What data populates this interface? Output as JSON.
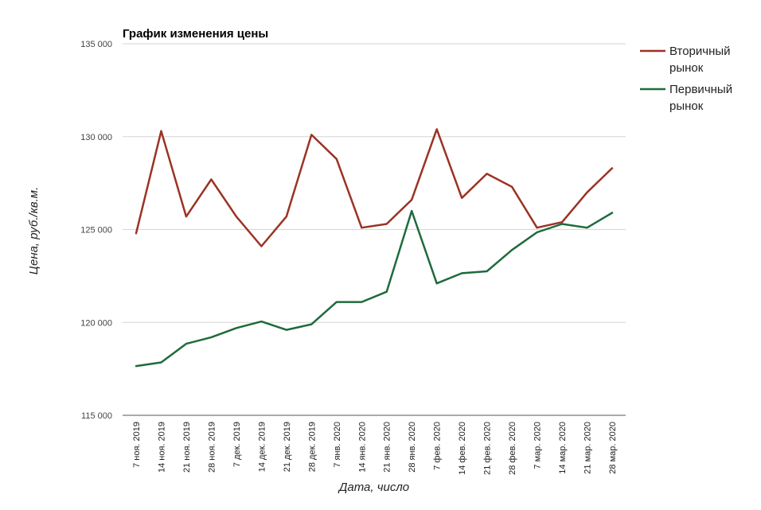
{
  "chart_data": {
    "type": "line",
    "title": "График изменения цены",
    "xlabel": "Дата, число",
    "ylabel": "Цена, руб./кв.м.",
    "ylim": [
      115000,
      135000
    ],
    "yticks": [
      115000,
      120000,
      125000,
      130000,
      135000
    ],
    "ytick_labels": [
      "115 000",
      "120 000",
      "125 000",
      "130 000",
      "135 000"
    ],
    "grid": true,
    "legend_position": "right",
    "categories": [
      "7 ноя. 2019",
      "14 ноя. 2019",
      "21 ноя. 2019",
      "28 ноя. 2019",
      "7 дек. 2019",
      "14 дек. 2019",
      "21 дек. 2019",
      "28 дек. 2019",
      "7 янв. 2020",
      "14 янв. 2020",
      "21 янв. 2020",
      "28 янв. 2020",
      "7 фев. 2020",
      "14 фев. 2020",
      "21 фев. 2020",
      "28 фев. 2020",
      "7 мар. 2020",
      "14 мар. 2020",
      "21 мар. 2020",
      "28 мар. 2020"
    ],
    "series": [
      {
        "name": "Вторичный рынок",
        "color": "#9a3324",
        "values": [
          124800,
          130300,
          125700,
          127700,
          125700,
          124100,
          125700,
          130100,
          128800,
          125100,
          125300,
          126600,
          130400,
          126700,
          128000,
          127300,
          125100,
          125400,
          127000,
          128300
        ]
      },
      {
        "name": "Первичный рынок",
        "color": "#1e6b3c",
        "values": [
          117650,
          117850,
          118850,
          119200,
          119700,
          120050,
          119600,
          119900,
          121100,
          121100,
          121650,
          126000,
          122100,
          122650,
          122750,
          123900,
          124850,
          125300,
          125100,
          125900
        ]
      }
    ]
  },
  "legend": {
    "items": [
      {
        "line1": "Вторичный",
        "line2": "рынок",
        "color": "#9a3324"
      },
      {
        "line1": "Первичный",
        "line2": "рынок",
        "color": "#1e6b3c"
      }
    ]
  }
}
